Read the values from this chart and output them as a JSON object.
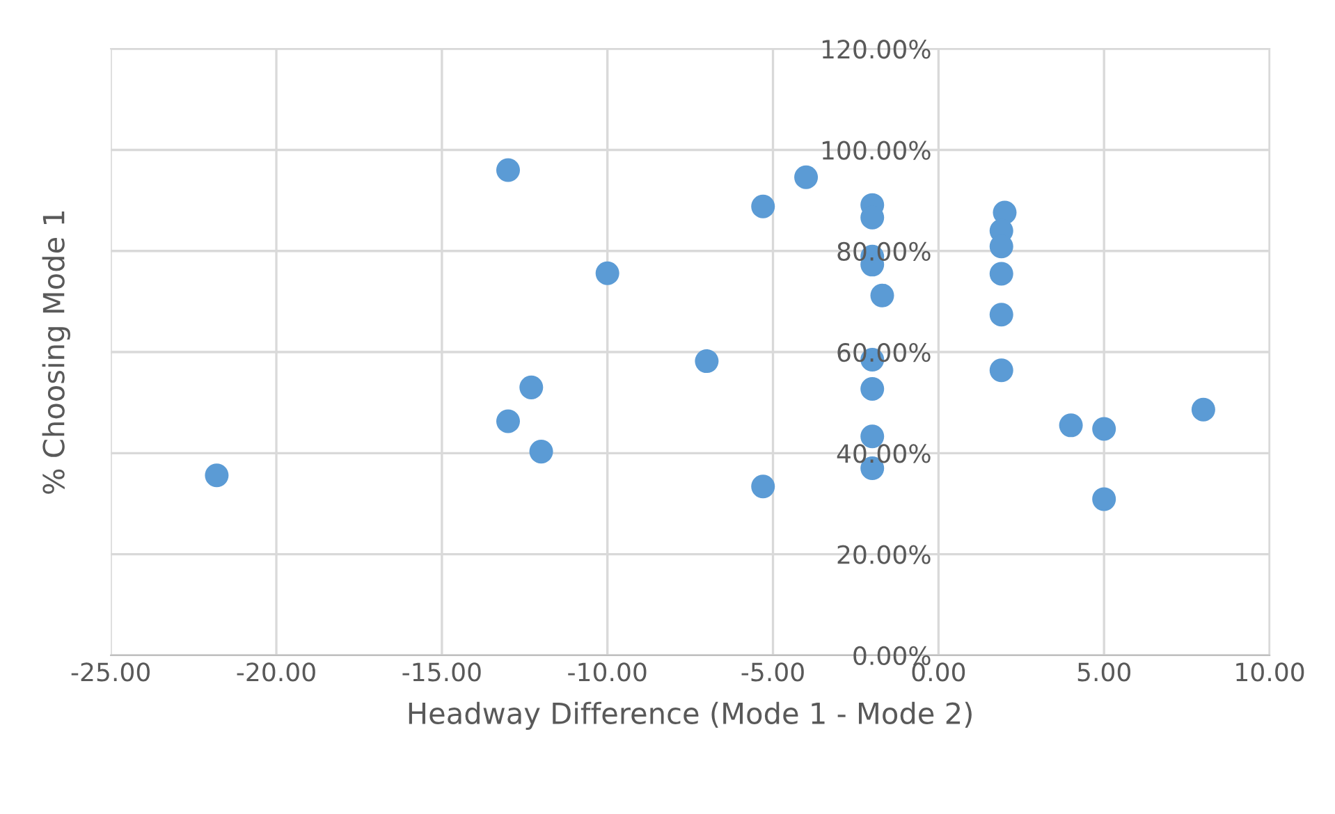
{
  "chart_data": {
    "type": "scatter",
    "xlabel": "Headway Difference (Mode 1 - Mode 2)",
    "ylabel": "% Choosing Mode 1",
    "x": [
      -21.8,
      -13.0,
      -10.0,
      -12.3,
      -13.0,
      -12.0,
      -7.0,
      -5.3,
      -5.3,
      -4.0,
      -2.0,
      -2.0,
      -2.0,
      -2.0,
      -1.7,
      -2.0,
      -2.0,
      -2.0,
      -2.0,
      2.0,
      1.9,
      1.9,
      1.9,
      1.9,
      1.9,
      4.0,
      5.0,
      8.0,
      5.0
    ],
    "series": [
      {
        "color": "#5b9bd5",
        "values": [
          35.6,
          96.0,
          75.6,
          53.0,
          46.3,
          40.3,
          58.2,
          88.8,
          33.4,
          94.6,
          89.1,
          86.6,
          78.9,
          77.3,
          71.2,
          58.5,
          52.7,
          43.3,
          37.0,
          87.6,
          84.0,
          80.9,
          75.5,
          67.4,
          56.4,
          45.5,
          44.8,
          48.6,
          30.9
        ]
      }
    ],
    "xlim": [
      -25,
      10
    ],
    "xticks": [
      {
        "value": -25,
        "label": "-25.00"
      },
      {
        "value": -20,
        "label": "-20.00"
      },
      {
        "value": -15,
        "label": "-15.00"
      },
      {
        "value": -10,
        "label": "-10.00"
      },
      {
        "value": -5,
        "label": "-5.00"
      },
      {
        "value": 0,
        "label": "0.00"
      },
      {
        "value": 5,
        "label": "5.00"
      },
      {
        "value": 10,
        "label": "10.00"
      }
    ],
    "ylim": [
      0,
      120
    ],
    "yticks": [
      {
        "value": 0,
        "label": "0.00%"
      },
      {
        "value": 20,
        "label": "20.00%"
      },
      {
        "value": 40,
        "label": "40.00%"
      },
      {
        "value": 60,
        "label": "60.00%"
      },
      {
        "value": 80,
        "label": "80.00%"
      },
      {
        "value": 100,
        "label": "100.00%"
      },
      {
        "value": 120,
        "label": "120.00%"
      }
    ],
    "grid": true,
    "marker": "circle",
    "legend": false
  }
}
